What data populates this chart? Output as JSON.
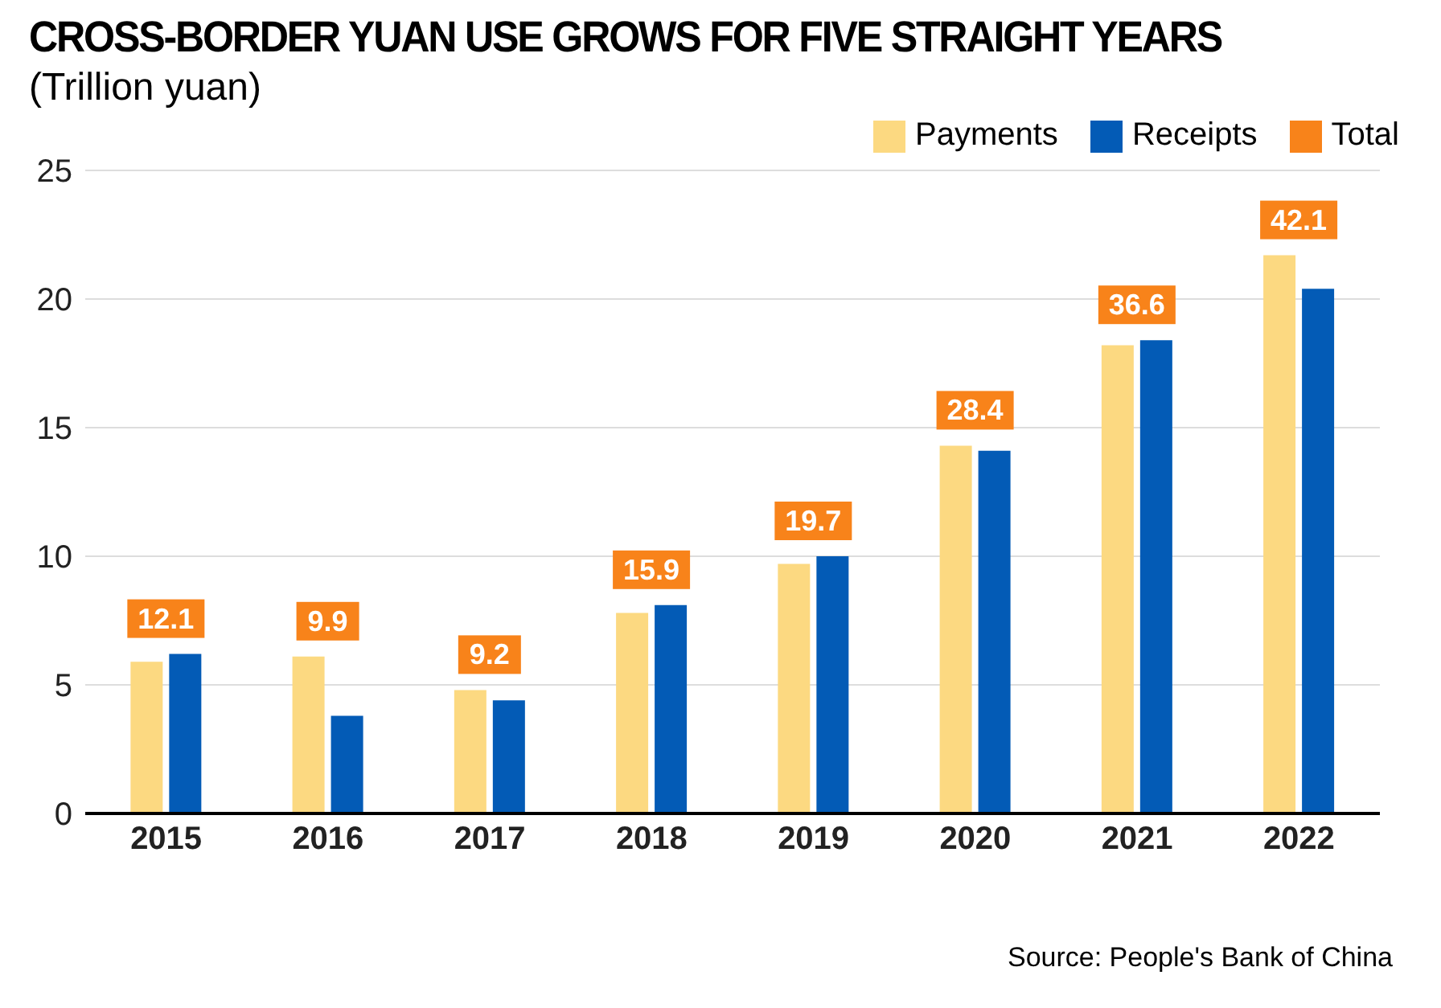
{
  "chart_data": {
    "type": "bar",
    "title": "CROSS-BORDER YUAN USE GROWS FOR FIVE STRAIGHT YEARS",
    "subtitle": "(Trillion yuan)",
    "annotations": [
      "Source: People's Bank of China"
    ],
    "categories": [
      "2015",
      "2016",
      "2017",
      "2018",
      "2019",
      "2020",
      "2021",
      "2022"
    ],
    "series": [
      {
        "name": "Payments",
        "color": "#fcd981",
        "values": [
          5.9,
          6.1,
          4.8,
          7.8,
          9.7,
          14.3,
          18.2,
          21.7
        ]
      },
      {
        "name": "Receipts",
        "color": "#035bb6",
        "values": [
          6.2,
          3.8,
          4.4,
          8.1,
          10.0,
          14.1,
          18.4,
          20.4
        ]
      },
      {
        "name": "Total",
        "color": "#f8831a",
        "values": [
          null,
          null,
          null,
          null,
          null,
          null,
          null,
          null
        ]
      }
    ],
    "totals": [
      "12.1",
      "9.9",
      "9.2",
      "15.9",
      "19.7",
      "28.4",
      "36.6",
      "42.1"
    ],
    "ylim": [
      0,
      25
    ],
    "yticks": [
      0,
      5,
      10,
      15,
      20,
      25
    ],
    "grid": "y",
    "legend": "top right"
  }
}
